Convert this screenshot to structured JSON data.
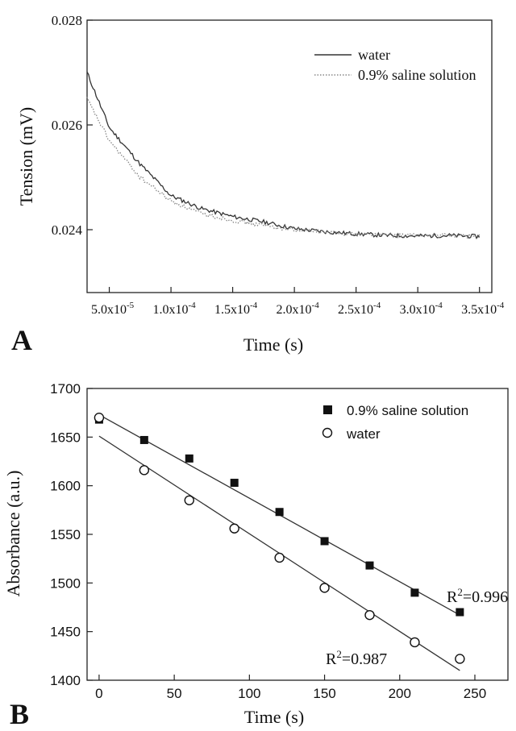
{
  "chart_data": [
    {
      "panel": "A",
      "type": "line",
      "xlabel": "Time (s)",
      "ylabel": "Tension (mV)",
      "xlim": [
        3.2e-05,
        0.00036
      ],
      "ylim": [
        0.0228,
        0.028
      ],
      "x_ticks": [
        5e-05,
        0.0001,
        0.00015,
        0.0002,
        0.00025,
        0.0003,
        0.00035
      ],
      "x_tick_labels": [
        {
          "mantissa": "5.0x10",
          "exp": "-5"
        },
        {
          "mantissa": "1.0x10",
          "exp": "-4"
        },
        {
          "mantissa": "1.5x10",
          "exp": "-4"
        },
        {
          "mantissa": "2.0x10",
          "exp": "-4"
        },
        {
          "mantissa": "2.5x10",
          "exp": "-4"
        },
        {
          "mantissa": "3.0x10",
          "exp": "-4"
        },
        {
          "mantissa": "3.5x10",
          "exp": "-4"
        }
      ],
      "y_ticks": [
        0.024,
        0.026,
        0.028
      ],
      "y_tick_labels": [
        "0.024",
        "0.026",
        "0.028"
      ],
      "legend_position": "top-right",
      "series": [
        {
          "name": "water",
          "style": "solid",
          "color": "#333333",
          "x": [
            3.2e-05,
            5e-05,
            7.5e-05,
            0.0001,
            0.000125,
            0.00015,
            0.000175,
            0.0002,
            0.000225,
            0.00025,
            0.000275,
            0.0003,
            0.000325,
            0.00035
          ],
          "y": [
            0.027,
            0.02595,
            0.02525,
            0.02465,
            0.0244,
            0.02425,
            0.02415,
            0.02402,
            0.02396,
            0.02392,
            0.02389,
            0.02388,
            0.02389,
            0.02387
          ]
        },
        {
          "name": "0.9% saline solution",
          "style": "dotted",
          "color": "#888888",
          "x": [
            3.2e-05,
            5e-05,
            7.5e-05,
            0.0001,
            0.000125,
            0.00015,
            0.000175,
            0.0002,
            0.000225,
            0.00025,
            0.000275,
            0.0003,
            0.000325,
            0.00035
          ],
          "y": [
            0.0265,
            0.0257,
            0.025,
            0.02455,
            0.0243,
            0.02418,
            0.02408,
            0.024,
            0.02395,
            0.02392,
            0.0239,
            0.02389,
            0.02389,
            0.02388
          ]
        }
      ]
    },
    {
      "panel": "B",
      "type": "scatter",
      "xlabel": "Time (s)",
      "ylabel": "Absorbance (a.u.)",
      "xlim": [
        -8,
        272
      ],
      "ylim": [
        1400,
        1700
      ],
      "x_ticks": [
        0,
        50,
        100,
        150,
        200,
        250
      ],
      "x_tick_labels": [
        "0",
        "50",
        "100",
        "150",
        "200",
        "250"
      ],
      "y_ticks": [
        1400,
        1450,
        1500,
        1550,
        1600,
        1650,
        1700
      ],
      "y_tick_labels": [
        "1400",
        "1450",
        "1500",
        "1550",
        "1600",
        "1650",
        "1700"
      ],
      "legend_position": "top-right",
      "series": [
        {
          "name": "0.9% saline solution",
          "marker": "filled-square",
          "x": [
            0,
            30,
            60,
            90,
            120,
            150,
            180,
            210,
            240
          ],
          "y": [
            1668,
            1647,
            1628,
            1603,
            1573,
            1543,
            1518,
            1490,
            1470
          ],
          "fit": {
            "x": [
              0,
              240
            ],
            "y": [
              1673,
              1467
            ]
          },
          "r2_label": {
            "prefix": "R",
            "exp": "2",
            "value": "=0.996"
          }
        },
        {
          "name": "water",
          "marker": "open-circle",
          "x": [
            0,
            30,
            60,
            90,
            120,
            150,
            180,
            210,
            240
          ],
          "y": [
            1670,
            1616,
            1585,
            1556,
            1526,
            1495,
            1467,
            1439,
            1422
          ],
          "fit": {
            "x": [
              0,
              240
            ],
            "y": [
              1651,
              1410
            ]
          },
          "r2_label": {
            "prefix": "R",
            "exp": "2",
            "value": "=0.987"
          }
        }
      ]
    }
  ],
  "panel_labels": [
    "A",
    "B"
  ]
}
